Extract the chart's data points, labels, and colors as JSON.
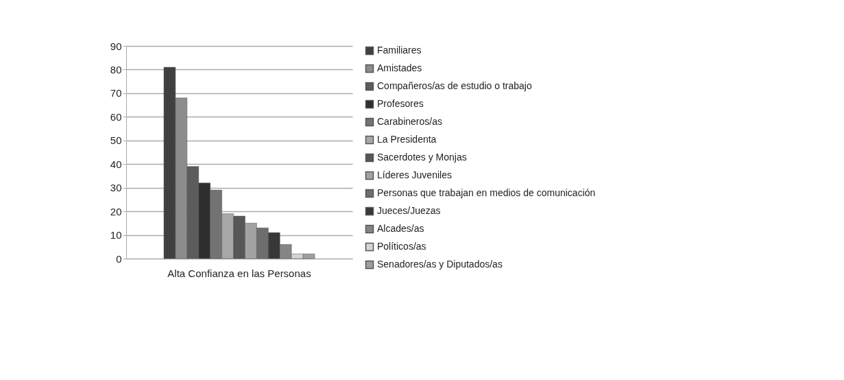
{
  "chart_data": {
    "type": "bar",
    "categories": [
      "Alta Confianza en las Personas"
    ],
    "series": [
      {
        "name": "Familiares",
        "color": "#404040",
        "values": [
          81
        ]
      },
      {
        "name": "Amistades",
        "color": "#8c8c8c",
        "values": [
          68
        ]
      },
      {
        "name": "Compañeros/as de estudio o trabajo",
        "color": "#5c5c5c",
        "values": [
          39
        ]
      },
      {
        "name": "Profesores",
        "color": "#2e2e2e",
        "values": [
          32
        ]
      },
      {
        "name": "Carabineros/as",
        "color": "#737373",
        "values": [
          29
        ]
      },
      {
        "name": "La Presidenta",
        "color": "#a8a8a8",
        "values": [
          19
        ]
      },
      {
        "name": "Sacerdotes y Monjas",
        "color": "#575757",
        "values": [
          18
        ]
      },
      {
        "name": "Líderes Juveniles",
        "color": "#a3a3a3",
        "values": [
          15
        ]
      },
      {
        "name": "Personas que trabajan en medios de comunicación",
        "color": "#6e6e6e",
        "values": [
          13
        ]
      },
      {
        "name": "Jueces/Juezas",
        "color": "#383838",
        "values": [
          11
        ]
      },
      {
        "name": "Alcades/as",
        "color": "#858585",
        "values": [
          6
        ]
      },
      {
        "name": "Políticos/as",
        "color": "#d4d4d4",
        "values": [
          2
        ]
      },
      {
        "name": "Senadores/as y Diputados/as",
        "color": "#9e9e9e",
        "values": [
          2
        ]
      }
    ],
    "ylim": [
      0,
      90
    ],
    "yticks": [
      0,
      10,
      20,
      30,
      40,
      50,
      60,
      70,
      80,
      90
    ],
    "grid": "y",
    "legend": "right"
  }
}
